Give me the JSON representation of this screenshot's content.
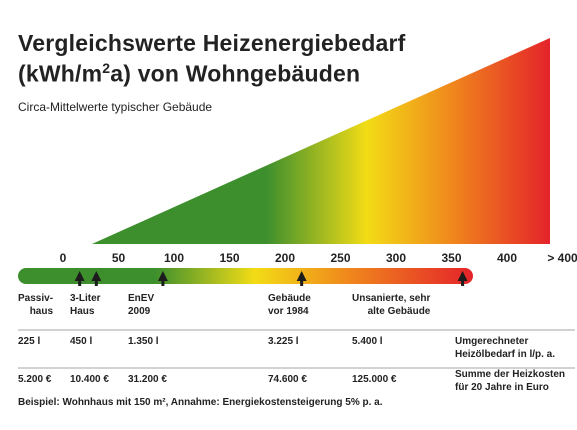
{
  "title": {
    "line1": "Vergleichswerte Heizenergiebedarf",
    "line2_pre": "(kWh/m",
    "line2_sup": "2",
    "line2_post": "a) von Wohngebäuden"
  },
  "subtitle": "Circa-Mittelwerte typischer Gebäude",
  "colors": {
    "green": "#3d8f2e",
    "yellow": "#f2dc16",
    "orange": "#f08a1c",
    "red": "#e4232a",
    "text": "#222222",
    "rule": "#888888"
  },
  "chart_data": {
    "type": "table",
    "scale": {
      "min": 0,
      "max": 400,
      "ticks": [
        {
          "value": 0,
          "label": "0"
        },
        {
          "value": 50,
          "label": "50"
        },
        {
          "value": 100,
          "label": "100"
        },
        {
          "value": 150,
          "label": "150"
        },
        {
          "value": 200,
          "label": "200"
        },
        {
          "value": 250,
          "label": "250"
        },
        {
          "value": 300,
          "label": "300"
        },
        {
          "value": 350,
          "label": "350"
        },
        {
          "value": 400,
          "label": "400"
        },
        {
          "value": 450,
          "label": "> 400"
        }
      ]
    },
    "categories": [
      {
        "name": "Passiv-\nhaus",
        "kwh": 15,
        "oil": "225 l",
        "cost": "5.200 €"
      },
      {
        "name": "3-Liter\nHaus",
        "kwh": 30,
        "oil": "450 l",
        "cost": "10.400 €"
      },
      {
        "name": "EnEV\n2009",
        "kwh": 90,
        "oil": "1.350 l",
        "cost": "31.200 €"
      },
      {
        "name": "Gebäude\nvor 1984",
        "kwh": 215,
        "oil": "3.225 l",
        "cost": "74.600 €"
      },
      {
        "name": "Unsanierte, sehr\nalte Gebäude",
        "kwh": 360,
        "oil": "5.400 l",
        "cost": "125.000 €"
      }
    ],
    "row_labels": {
      "oil": "Umgerechneter\nHeizölbedarf in l/p. a.",
      "cost": "Summe der Heizkosten\nfür 20 Jahre in Euro"
    },
    "note": "Beispiel: Wohnhaus mit 150 m², Annahme: Energiekostensteigerung 5% p. a."
  }
}
